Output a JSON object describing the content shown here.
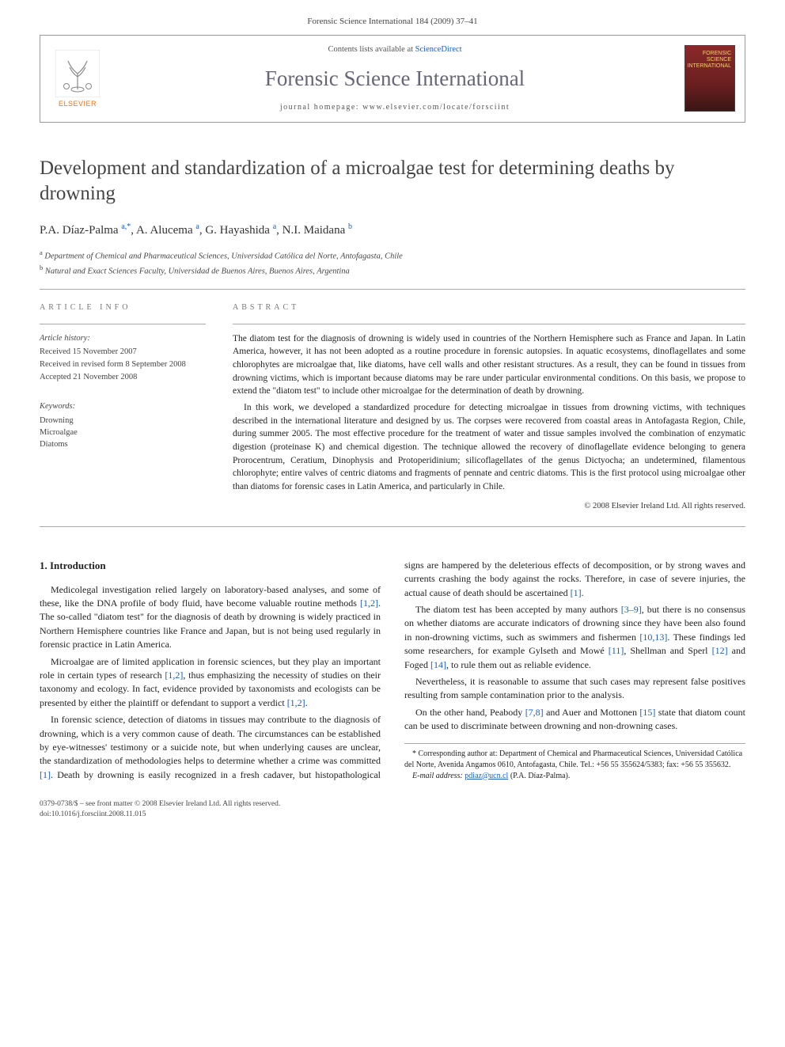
{
  "citation_line": "Forensic Science International 184 (2009) 37–41",
  "header": {
    "contents_prefix": "Contents lists available at ",
    "contents_link": "ScienceDirect",
    "journal_title": "Forensic Science International",
    "homepage_label": "journal homepage: ",
    "homepage_url": "www.elsevier.com/locate/forsciint",
    "publisher_brand": "ELSEVIER",
    "cover_text": "FORENSIC SCIENCE INTERNATIONAL"
  },
  "article": {
    "title": "Development and standardization of a microalgae test for determining deaths by drowning",
    "authors_html": "P.A. Díaz-Palma <sup class='sup'>a,*</sup>, A. Alucema <sup class='sup'>a</sup>, G. Hayashida <sup class='sup'>a</sup>, N.I. Maidana <sup class='sup'>b</sup>",
    "affiliations": [
      {
        "mark": "a",
        "text": "Department of Chemical and Pharmaceutical Sciences, Universidad Católica del Norte, Antofagasta, Chile"
      },
      {
        "mark": "b",
        "text": "Natural and Exact Sciences Faculty, Universidad de Buenos Aires, Buenos Aires, Argentina"
      }
    ]
  },
  "info": {
    "section_label": "ARTICLE INFO",
    "history_label": "Article history:",
    "history": [
      "Received 15 November 2007",
      "Received in revised form 8 September 2008",
      "Accepted 21 November 2008"
    ],
    "keywords_label": "Keywords:",
    "keywords": [
      "Drowning",
      "Microalgae",
      "Diatoms"
    ]
  },
  "abstract": {
    "section_label": "ABSTRACT",
    "paragraphs": [
      "The diatom test for the diagnosis of drowning is widely used in countries of the Northern Hemisphere such as France and Japan. In Latin America, however, it has not been adopted as a routine procedure in forensic autopsies. In aquatic ecosystems, dinoflagellates and some chlorophytes are microalgae that, like diatoms, have cell walls and other resistant structures. As a result, they can be found in tissues from drowning victims, which is important because diatoms may be rare under particular environmental conditions. On this basis, we propose to extend the \"diatom test\" to include other microalgae for the determination of death by drowning.",
      "In this work, we developed a standardized procedure for detecting microalgae in tissues from drowning victims, with techniques described in the international literature and designed by us. The corpses were recovered from coastal areas in Antofagasta Region, Chile, during summer 2005. The most effective procedure for the treatment of water and tissue samples involved the combination of enzymatic digestion (proteinase K) and chemical digestion. The technique allowed the recovery of dinoflagellate evidence belonging to genera Prorocentrum, Ceratium, Dinophysis and Protoperidinium; silicoflagellates of the genus Dictyocha; an undetermined, filamentous chlorophyte; entire valves of centric diatoms and fragments of pennate and centric diatoms. This is the first protocol using microalgae other than diatoms for forensic cases in Latin America, and particularly in Chile."
    ],
    "copyright": "© 2008 Elsevier Ireland Ltd. All rights reserved."
  },
  "body": {
    "section_number": "1.",
    "section_title": "Introduction",
    "paragraphs": [
      "Medicolegal investigation relied largely on laboratory-based analyses, and some of these, like the DNA profile of body fluid, have become valuable routine methods <span class='ref'>[1,2]</span>. The so-called \"diatom test\" for the diagnosis of death by drowning is widely practiced in Northern Hemisphere countries like France and Japan, but is not being used regularly in forensic practice in Latin America.",
      "Microalgae are of limited application in forensic sciences, but they play an important role in certain types of research <span class='ref'>[1,2]</span>, thus emphasizing the necessity of studies on their taxonomy and ecology. In fact, evidence provided by taxonomists and ecologists can be presented by either the plaintiff or defendant to support a verdict <span class='ref'>[1,2]</span>.",
      "In forensic science, detection of diatoms in tissues may contribute to the diagnosis of drowning, which is a very common cause of death. The circumstances can be established by eye-witnesses' testimony or a suicide note, but when underlying causes are unclear, the standardization of methodologies helps to determine whether a crime was committed <span class='ref'>[1]</span>. Death by drowning is easily recognized in a fresh cadaver, but histopathological signs are hampered by the deleterious effects of decomposition, or by strong waves and currents crashing the body against the rocks. Therefore, in case of severe injuries, the actual cause of death should be ascertained <span class='ref'>[1]</span>.",
      "The diatom test has been accepted by many authors <span class='ref'>[3–9]</span>, but there is no consensus on whether diatoms are accurate indicators of drowning since they have been also found in non-drowning victims, such as swimmers and fishermen <span class='ref'>[10,13]</span>. These findings led some researchers, for example Gylseth and Mowé <span class='ref'>[11]</span>, Shellman and Sperl <span class='ref'>[12]</span> and Foged <span class='ref'>[14]</span>, to rule them out as reliable evidence.",
      "Nevertheless, it is reasonable to assume that such cases may represent false positives resulting from sample contamination prior to the analysis.",
      "On the other hand, Peabody <span class='ref'>[7,8]</span> and Auer and Mottonen <span class='ref'>[15]</span> state that diatom count can be used to discriminate between drowning and non-drowning cases."
    ]
  },
  "footnote": {
    "corresponding": "* Corresponding author at: Department of Chemical and Pharmaceutical Sciences, Universidad Católica del Norte, Avenida Angamos 0610, Antofagasta, Chile. Tel.: +56 55 355624/5383; fax: +56 55 355632.",
    "email_label": "E-mail address:",
    "email": "pdiaz@ucn.cl",
    "email_person": "(P.A. Díaz-Palma)."
  },
  "footer": {
    "line1": "0379-0738/$ – see front matter © 2008 Elsevier Ireland Ltd. All rights reserved.",
    "line2": "doi:10.1016/j.forsciint.2008.11.015"
  },
  "colors": {
    "link": "#1a5fb4",
    "brand": "#e9711c",
    "rule": "#aaaaaa"
  }
}
